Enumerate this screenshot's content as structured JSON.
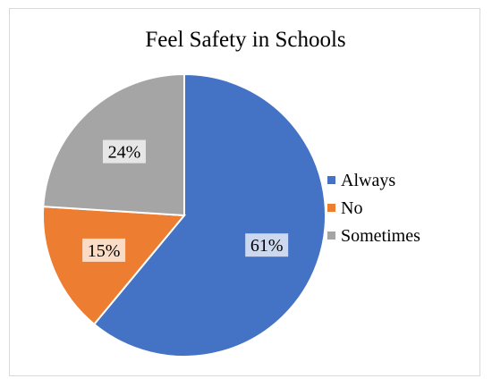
{
  "chart_data": {
    "type": "pie",
    "title": "Feel Safety in Schools",
    "categories": [
      "Always",
      "No",
      "Sometimes"
    ],
    "values": [
      61,
      15,
      24
    ],
    "data_labels": [
      "61%",
      "15%",
      "24%"
    ],
    "colors": [
      "#4472c4",
      "#ed7d31",
      "#a5a5a5"
    ],
    "legend_position": "right"
  }
}
